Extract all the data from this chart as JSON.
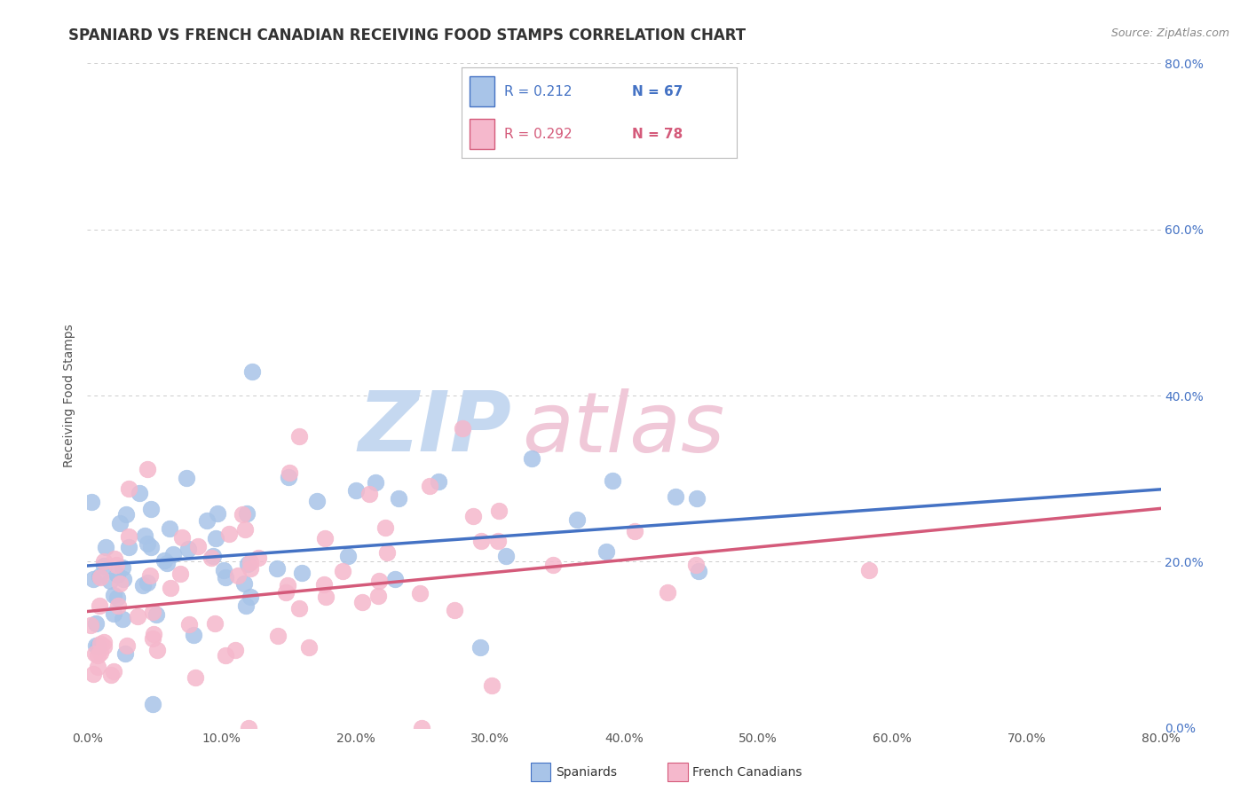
{
  "title": "SPANIARD VS FRENCH CANADIAN RECEIVING FOOD STAMPS CORRELATION CHART",
  "source": "Source: ZipAtlas.com",
  "ylabel": "Receiving Food Stamps",
  "xlim": [
    0.0,
    0.8
  ],
  "ylim": [
    0.0,
    0.8
  ],
  "ytick_positions": [
    0.0,
    0.2,
    0.4,
    0.6,
    0.8
  ],
  "ytick_labels": [
    "0.0%",
    "20.0%",
    "40.0%",
    "60.0%",
    "80.0%"
  ],
  "xtick_positions": [
    0.0,
    0.1,
    0.2,
    0.3,
    0.4,
    0.5,
    0.6,
    0.7,
    0.8
  ],
  "xtick_labels": [
    "0.0%",
    "10.0%",
    "20.0%",
    "30.0%",
    "40.0%",
    "50.0%",
    "60.0%",
    "70.0%",
    "80.0%"
  ],
  "spaniards_color": "#a8c4e8",
  "french_color": "#f5b8cc",
  "spaniards_edge_color": "#a8c4e8",
  "french_edge_color": "#f5b8cc",
  "spaniards_line_color": "#4472c4",
  "french_line_color": "#d45a7a",
  "legend_R_spaniards": "R = 0.212",
  "legend_N_spaniards": "N = 67",
  "legend_R_french": "R = 0.292",
  "legend_N_french": "N = 78",
  "watermark_ZIP": "ZIP",
  "watermark_atlas": "atlas",
  "watermark_color_blue": "#c5d8f0",
  "watermark_color_pink": "#f0c8d8",
  "background_color": "#ffffff",
  "grid_color": "#cccccc",
  "spaniards_n": 67,
  "french_n": 78,
  "spaniards_intercept_true": 0.195,
  "spaniards_slope_true": 0.115,
  "french_intercept_true": 0.14,
  "french_slope_true": 0.155
}
